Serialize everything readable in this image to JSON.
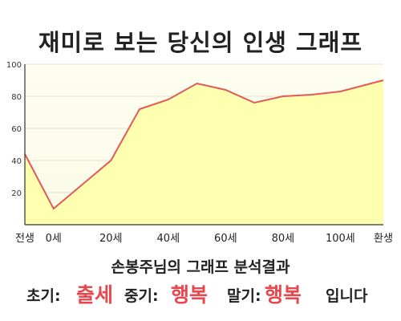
{
  "title": "재미로 보는 당신의 인생 그래프",
  "chart_data": {
    "type": "area",
    "title": "재미로 보는 당신의 인생 그래프",
    "x_tick_labels": [
      "전생",
      "0세",
      "20세",
      "40세",
      "60세",
      "80세",
      "100세",
      "환생"
    ],
    "x": [
      -10,
      0,
      20,
      30,
      40,
      50,
      60,
      70,
      80,
      90,
      100,
      115
    ],
    "values": [
      44,
      10,
      40,
      72,
      78,
      88,
      84,
      76,
      80,
      81,
      83,
      90
    ],
    "ylim": [
      0,
      100
    ],
    "y_ticks": [
      20,
      40,
      60,
      80,
      100
    ],
    "grid": true,
    "line_color": "#e05a5a",
    "fill_color": "#ffffb0"
  },
  "result": {
    "heading": "손봉주님의 그래프 분석결과",
    "early_label": "초기:",
    "early_value": "출세",
    "middle_label": "중기:",
    "middle_value": "행복",
    "late_label": "말기:",
    "late_value": "행복",
    "suffix": "입니다"
  },
  "colors": {
    "accent": "#e8474d"
  }
}
